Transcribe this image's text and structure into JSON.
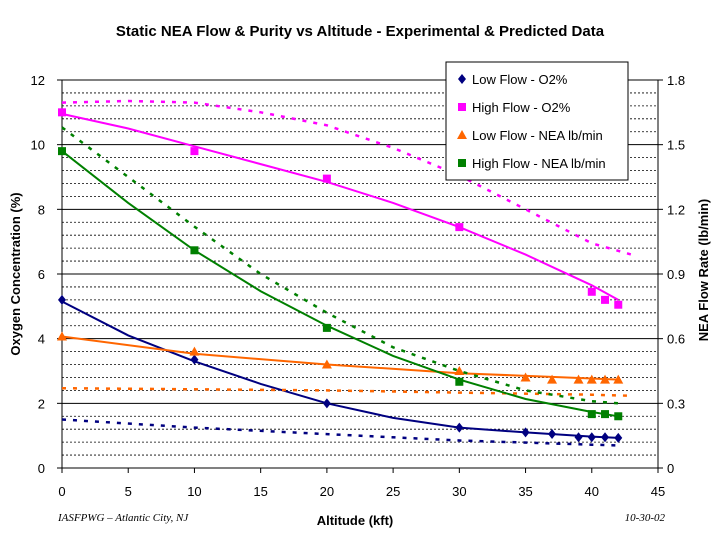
{
  "chart_data": {
    "type": "line",
    "title": "Static NEA Flow & Purity vs Altitude - Experimental & Predicted Data",
    "xlabel": "Altitude (kft)",
    "ylabel": "Oxygen Concentration (%)",
    "y2label": "NEA Flow Rate (lb/min)",
    "xlim": [
      0,
      45
    ],
    "ylim": [
      0,
      12
    ],
    "y2lim": [
      0,
      1.8
    ],
    "xticks": [
      "0",
      "5",
      "10",
      "15",
      "20",
      "25",
      "30",
      "35",
      "40",
      "45"
    ],
    "yticks": [
      "0",
      "2",
      "4",
      "6",
      "8",
      "10",
      "12"
    ],
    "y2ticks": [
      "0",
      "0.3",
      "0.6",
      "0.9",
      "1.2",
      "1.5",
      "1.8"
    ],
    "legend_position": "top-right",
    "series": [
      {
        "name": "Low Flow - O2%",
        "axis": "left",
        "color": "#000080",
        "marker": "diamond",
        "x": [
          0,
          10,
          20,
          30,
          35,
          37,
          39,
          40,
          41,
          42
        ],
        "y": [
          5.2,
          3.35,
          2.0,
          1.25,
          1.1,
          1.05,
          0.95,
          0.95,
          0.95,
          0.93
        ],
        "fit_x": [
          0,
          5,
          10,
          15,
          20,
          25,
          30,
          35,
          40,
          42
        ],
        "fit_y": [
          5.15,
          4.1,
          3.3,
          2.6,
          2.0,
          1.55,
          1.25,
          1.1,
          0.97,
          0.93
        ],
        "predicted_x": [
          0,
          10,
          20,
          30,
          40,
          42
        ],
        "predicted_y": [
          1.5,
          1.25,
          1.05,
          0.85,
          0.72,
          0.7
        ]
      },
      {
        "name": "High Flow - O2%",
        "axis": "left",
        "color": "#FF00FF",
        "marker": "square",
        "x": [
          0,
          10,
          20,
          30,
          40,
          41,
          42
        ],
        "y": [
          11.0,
          9.8,
          8.95,
          7.45,
          5.45,
          5.2,
          5.05
        ],
        "fit_x": [
          0,
          5,
          10,
          15,
          20,
          25,
          30,
          35,
          40,
          42
        ],
        "fit_y": [
          10.95,
          10.5,
          9.95,
          9.4,
          8.85,
          8.2,
          7.45,
          6.6,
          5.65,
          5.2
        ],
        "predicted_x": [
          0,
          5,
          10,
          15,
          20,
          25,
          30,
          35,
          40,
          43
        ],
        "predicted_y": [
          11.3,
          11.35,
          11.3,
          11.0,
          10.6,
          9.9,
          9.05,
          8.0,
          6.95,
          6.6
        ]
      },
      {
        "name": "Low Flow - NEA lb/min",
        "axis": "right",
        "color": "#FF6600",
        "marker": "triangle",
        "x": [
          0,
          10,
          20,
          30,
          35,
          37,
          39,
          40,
          41,
          42
        ],
        "y": [
          0.61,
          0.54,
          0.48,
          0.45,
          0.42,
          0.41,
          0.41,
          0.41,
          0.41,
          0.41
        ],
        "fit_x": [
          0,
          10,
          20,
          30,
          40,
          42
        ],
        "fit_y": [
          0.61,
          0.53,
          0.48,
          0.44,
          0.415,
          0.41
        ],
        "predicted_x": [
          0,
          10,
          20,
          30,
          40,
          43
        ],
        "predicted_y": [
          0.37,
          0.365,
          0.36,
          0.35,
          0.34,
          0.335
        ]
      },
      {
        "name": "High Flow - NEA lb/min",
        "axis": "right",
        "color": "#008000",
        "marker": "square",
        "x": [
          0,
          10,
          20,
          30,
          40,
          41,
          42
        ],
        "y": [
          1.47,
          1.01,
          0.65,
          0.4,
          0.25,
          0.25,
          0.24
        ],
        "fit_x": [
          0,
          5,
          10,
          15,
          20,
          25,
          30,
          35,
          40,
          42
        ],
        "fit_y": [
          1.47,
          1.23,
          1.01,
          0.82,
          0.66,
          0.52,
          0.41,
          0.32,
          0.26,
          0.24
        ],
        "predicted_x": [
          0,
          5,
          10,
          15,
          20,
          25,
          30,
          35,
          40,
          42
        ],
        "predicted_y": [
          1.58,
          1.35,
          1.12,
          0.9,
          0.72,
          0.56,
          0.45,
          0.36,
          0.31,
          0.3
        ]
      }
    ]
  },
  "footer": {
    "left": "IASFPWG – Atlantic City, NJ",
    "right": "10-30-02"
  }
}
